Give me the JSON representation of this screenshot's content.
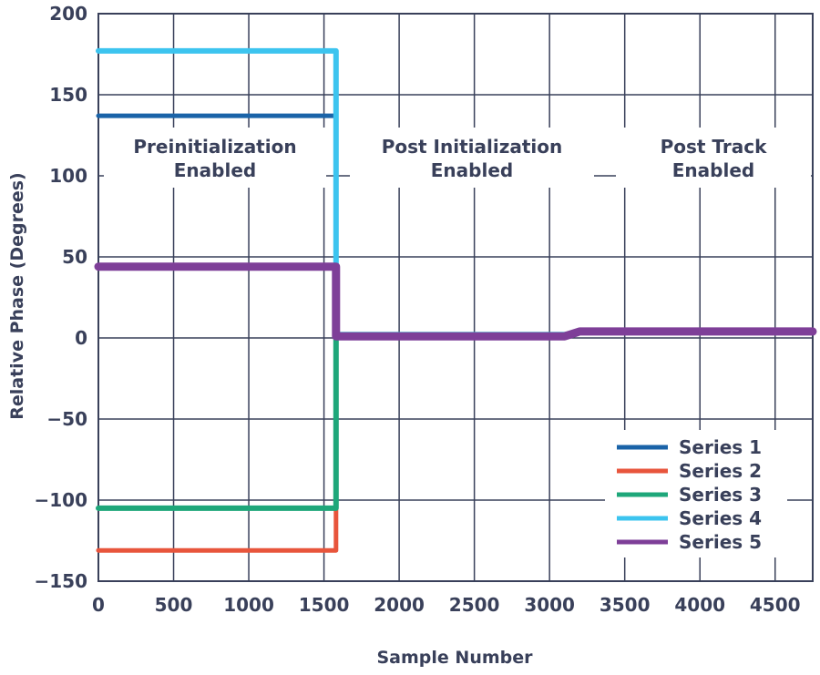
{
  "chart_data": {
    "type": "line",
    "xlabel": "Sample Number",
    "ylabel": "Relative Phase (Degrees)",
    "xlim": [
      0,
      4750
    ],
    "ylim": [
      -150,
      200
    ],
    "xticks": [
      0,
      500,
      1000,
      1500,
      2000,
      2500,
      3000,
      3500,
      4000,
      4500
    ],
    "yticks": [
      -150,
      -100,
      -50,
      0,
      50,
      100,
      150,
      200
    ],
    "xtick_labels": [
      "0",
      "500",
      "1000",
      "1500",
      "2000",
      "2500",
      "3000",
      "3500",
      "4000",
      "4500"
    ],
    "ytick_labels": [
      "−150",
      "−100",
      "−50",
      "0",
      "50",
      "100",
      "150",
      "200"
    ],
    "grid": true,
    "legend_position": "bottom-right",
    "annotations": [
      {
        "line1": "Preinitialization",
        "line2": "Enabled"
      },
      {
        "line1": "Post Initialization",
        "line2": "Enabled"
      },
      {
        "line1": "Post Track",
        "line2": "Enabled"
      }
    ],
    "series": [
      {
        "name": "Series 1",
        "color": "#1a63a8",
        "x": [
          0,
          1580,
          1580,
          3100,
          3200,
          4750
        ],
        "y": [
          137,
          137,
          2,
          2,
          4,
          4
        ]
      },
      {
        "name": "Series 2",
        "color": "#e8553c",
        "x": [
          0,
          1580,
          1580,
          3100,
          3200,
          4750
        ],
        "y": [
          -131,
          -131,
          2,
          2,
          4,
          4
        ]
      },
      {
        "name": "Series 3",
        "color": "#1ea77a",
        "x": [
          0,
          1580,
          1580,
          3100,
          3200,
          4750
        ],
        "y": [
          -105,
          -105,
          2,
          2,
          4,
          4
        ]
      },
      {
        "name": "Series 4",
        "color": "#3cc4ef",
        "x": [
          0,
          1580,
          1580,
          3100,
          3200,
          4750
        ],
        "y": [
          177,
          177,
          2,
          2,
          4,
          4
        ]
      },
      {
        "name": "Series 5",
        "color": "#7e3f98",
        "x": [
          0,
          1580,
          1580,
          3100,
          3200,
          4750
        ],
        "y": [
          44,
          44,
          1,
          1,
          4,
          4
        ]
      }
    ]
  }
}
